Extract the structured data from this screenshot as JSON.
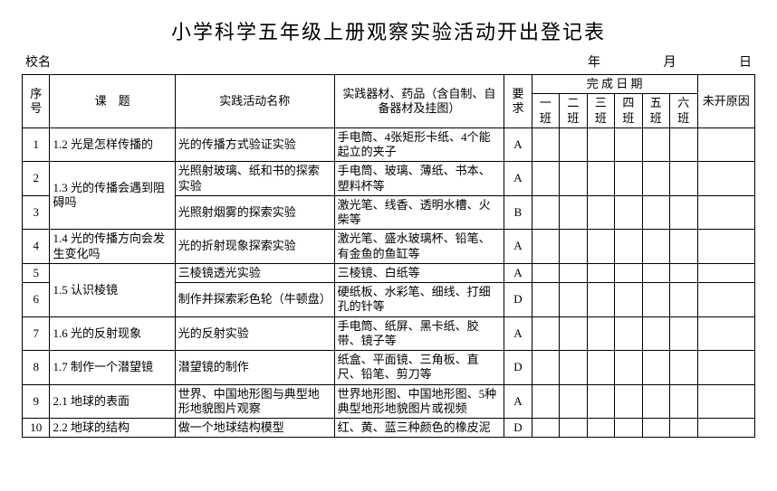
{
  "title": "小学科学五年级上册观察实验活动开出登记表",
  "meta": {
    "school_label": "校名",
    "year_label": "年",
    "month_label": "月",
    "day_label": "日"
  },
  "headers": {
    "seq": "序号",
    "topic": "课　题",
    "activity": "实践活动名称",
    "equipment": "实践器材、药品（含自制、自备器材及挂图）",
    "requirement": "要求",
    "completion": "完 成 日 期",
    "class1": "一班",
    "class2": "二班",
    "class3": "三班",
    "class4": "四班",
    "class5": "五班",
    "class6": "六班",
    "reason": "未开原因"
  },
  "rows": [
    {
      "seq": "1",
      "topic": "1.2 光是怎样传播的",
      "topic_rowspan": 1,
      "activity": "光的传播方式验证实验",
      "equipment": "手电筒、4张矩形卡纸、4个能起立的夹子",
      "req": "A"
    },
    {
      "seq": "2",
      "topic": "1.3 光的传播会遇到阻碍吗",
      "topic_rowspan": 2,
      "activity": "光照射玻璃、纸和书的探索实验",
      "equipment": "手电筒、玻璃、薄纸、书本、塑料杯等",
      "req": "A"
    },
    {
      "seq": "3",
      "activity": "光照射烟雾的探索实验",
      "equipment": "激光笔、线香、透明水槽、火柴等",
      "req": "B"
    },
    {
      "seq": "4",
      "topic": "1.4 光的传播方向会发生变化吗",
      "topic_rowspan": 1,
      "activity": "光的折射现象探索实验",
      "equipment": "激光笔、盛水玻璃杯、铅笔、有金鱼的鱼缸等",
      "req": "A"
    },
    {
      "seq": "5",
      "topic": "1.5 认识棱镜",
      "topic_rowspan": 2,
      "activity": "三棱镜透光实验",
      "equipment": "三棱镜、白纸等",
      "req": "A"
    },
    {
      "seq": "6",
      "activity": "制作并探索彩色轮（牛顿盘）",
      "equipment": "硬纸板、水彩笔、细线、打细孔的针等",
      "req": "D"
    },
    {
      "seq": "7",
      "topic": "1.6 光的反射现象",
      "topic_rowspan": 1,
      "activity": "光的反射实验",
      "equipment": "手电筒、纸屏、黑卡纸、胶带、镜子等",
      "req": "A"
    },
    {
      "seq": "8",
      "topic": "1.7 制作一个潜望镜",
      "topic_rowspan": 1,
      "activity": "潜望镜的制作",
      "equipment": "纸盒、平面镜、三角板、直尺、铅笔、剪刀等",
      "req": "D"
    },
    {
      "seq": "9",
      "topic": "2.1 地球的表面",
      "topic_rowspan": 1,
      "activity": "世界、中国地形图与典型地形地貌图片观察",
      "equipment": "世界地形图、中国地形图、5种典型地形地貌图片或视频",
      "req": "A"
    },
    {
      "seq": "10",
      "topic": "2.2 地球的结构",
      "topic_rowspan": 1,
      "activity": "做一个地球结构模型",
      "equipment": "红、黄、蓝三种颜色的橡皮泥",
      "req": "D"
    }
  ]
}
